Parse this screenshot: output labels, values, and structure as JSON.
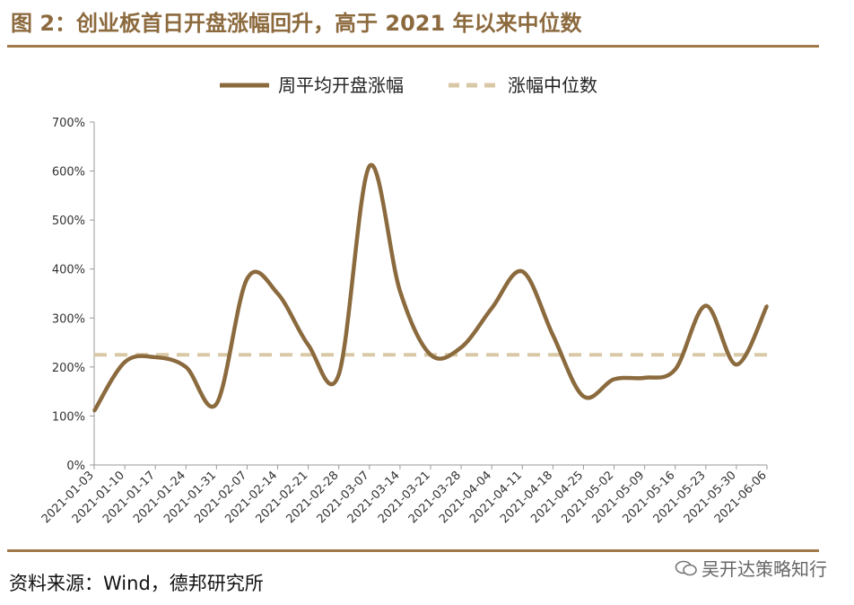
{
  "title": "图 2：创业板首日开盘涨幅回升，高于 2021 年以来中位数",
  "source": "资料来源：Wind，德邦研究所",
  "watermark": "吴开达策略知行",
  "colors": {
    "line": "#8b6a3e",
    "median": "#d8c8a5",
    "title": "#8c6a3e",
    "rule": "#a07a4a"
  },
  "chart_data": {
    "type": "line",
    "ylim": [
      0,
      700
    ],
    "ytick_labels": [
      "0%",
      "100%",
      "200%",
      "300%",
      "400%",
      "500%",
      "600%",
      "700%"
    ],
    "categories": [
      "2021-01-03",
      "2021-01-10",
      "2021-01-17",
      "2021-01-24",
      "2021-01-31",
      "2021-02-07",
      "2021-02-14",
      "2021-02-21",
      "2021-02-28",
      "2021-03-07",
      "2021-03-14",
      "2021-03-21",
      "2021-03-28",
      "2021-04-04",
      "2021-04-11",
      "2021-04-18",
      "2021-04-25",
      "2021-05-02",
      "2021-05-09",
      "2021-05-16",
      "2021-05-23",
      "2021-05-30",
      "2021-06-06"
    ],
    "series": [
      {
        "name": "周平均开盘涨幅",
        "style": "solid",
        "values": [
          110,
          210,
          220,
          200,
          125,
          380,
          350,
          245,
          185,
          610,
          355,
          225,
          240,
          320,
          395,
          265,
          140,
          175,
          178,
          195,
          325,
          205,
          325
        ]
      },
      {
        "name": "涨幅中位数",
        "style": "dashed",
        "value": 225
      }
    ],
    "legend": "top-center"
  }
}
